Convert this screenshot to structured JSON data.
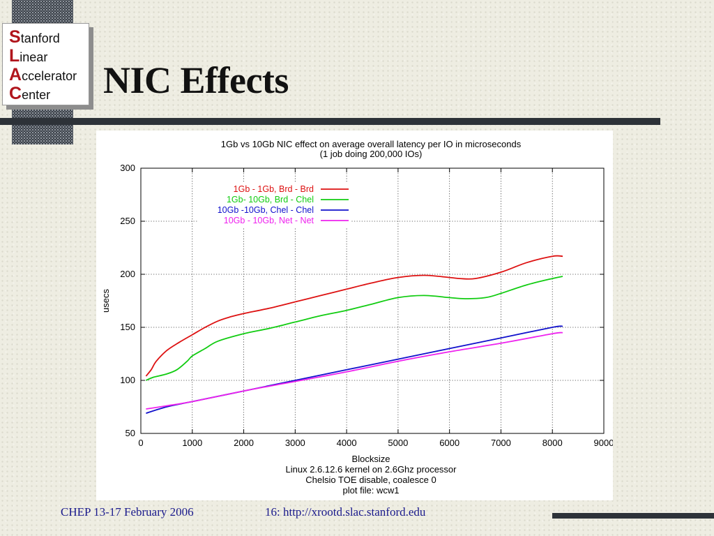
{
  "slide": {
    "title": "NIC Effects",
    "footer_left": "CHEP 13-17 February 2006",
    "footer_center": "16: http://xrootd.slac.stanford.edu"
  },
  "logo": {
    "lines": [
      {
        "cap": "S",
        "rest": "tanford"
      },
      {
        "cap": "L",
        "rest": "inear"
      },
      {
        "cap": "A",
        "rest": "ccelerator"
      },
      {
        "cap": "C",
        "rest": "enter"
      }
    ],
    "cap_color": "#b0151c"
  },
  "chart_data": {
    "type": "line",
    "title": "1Gb vs 10Gb NIC effect on average overall latency per IO in microseconds",
    "subtitle": "(1 job doing 200,000 IOs)",
    "xlabel": "Blocksize",
    "ylabel": "usecs",
    "notes": [
      "Linux 2.6.12.6 kernel on 2.6Ghz processor",
      "Chelsio TOE disable, coalesce 0",
      "plot file: wcw1"
    ],
    "xlim": [
      0,
      9000
    ],
    "ylim": [
      50,
      300
    ],
    "xticks": [
      0,
      1000,
      2000,
      3000,
      4000,
      5000,
      6000,
      7000,
      8000,
      9000
    ],
    "yticks": [
      50,
      100,
      150,
      200,
      250,
      300
    ],
    "grid": true,
    "legend_position": "top-right",
    "series": [
      {
        "name": "1Gb - 1Gb, Brd - Brd",
        "color": "#dd1111",
        "points": [
          [
            100,
            104
          ],
          [
            200,
            110
          ],
          [
            300,
            118
          ],
          [
            500,
            128
          ],
          [
            750,
            136
          ],
          [
            1000,
            143
          ],
          [
            1250,
            150
          ],
          [
            1500,
            156
          ],
          [
            1750,
            160
          ],
          [
            2000,
            163
          ],
          [
            2500,
            168
          ],
          [
            3000,
            174
          ],
          [
            3500,
            180
          ],
          [
            4000,
            186
          ],
          [
            4500,
            192
          ],
          [
            5000,
            197
          ],
          [
            5500,
            199
          ],
          [
            6000,
            197
          ],
          [
            6200,
            196
          ],
          [
            6500,
            196
          ],
          [
            7000,
            202
          ],
          [
            7500,
            211
          ],
          [
            8000,
            217
          ],
          [
            8200,
            217
          ]
        ]
      },
      {
        "name": "1Gb- 10Gb, Brd - Chel",
        "color": "#11cc11",
        "points": [
          [
            100,
            100
          ],
          [
            250,
            103
          ],
          [
            500,
            106
          ],
          [
            700,
            110
          ],
          [
            900,
            118
          ],
          [
            1000,
            123
          ],
          [
            1250,
            130
          ],
          [
            1500,
            137
          ],
          [
            2000,
            144
          ],
          [
            2500,
            149
          ],
          [
            3000,
            155
          ],
          [
            3500,
            161
          ],
          [
            4000,
            166
          ],
          [
            4500,
            172
          ],
          [
            5000,
            178
          ],
          [
            5500,
            180
          ],
          [
            6000,
            178
          ],
          [
            6300,
            177
          ],
          [
            6700,
            178
          ],
          [
            7000,
            182
          ],
          [
            7500,
            190
          ],
          [
            8000,
            196
          ],
          [
            8200,
            198
          ]
        ]
      },
      {
        "name": "10Gb -10Gb, Chel - Chel",
        "color": "#1111cc",
        "points": [
          [
            100,
            69
          ],
          [
            500,
            75
          ],
          [
            1000,
            80
          ],
          [
            2000,
            90
          ],
          [
            3000,
            100
          ],
          [
            4000,
            110
          ],
          [
            5000,
            120
          ],
          [
            6000,
            130
          ],
          [
            7000,
            140
          ],
          [
            8000,
            150
          ],
          [
            8200,
            151
          ]
        ]
      },
      {
        "name": "10Gb - 10Gb, Net - Net",
        "color": "#ee22ee",
        "points": [
          [
            100,
            73
          ],
          [
            500,
            76
          ],
          [
            1000,
            80
          ],
          [
            2000,
            90
          ],
          [
            3000,
            99
          ],
          [
            4000,
            108
          ],
          [
            5000,
            118
          ],
          [
            6000,
            127
          ],
          [
            7000,
            135
          ],
          [
            8000,
            144
          ],
          [
            8200,
            145
          ]
        ]
      }
    ]
  }
}
